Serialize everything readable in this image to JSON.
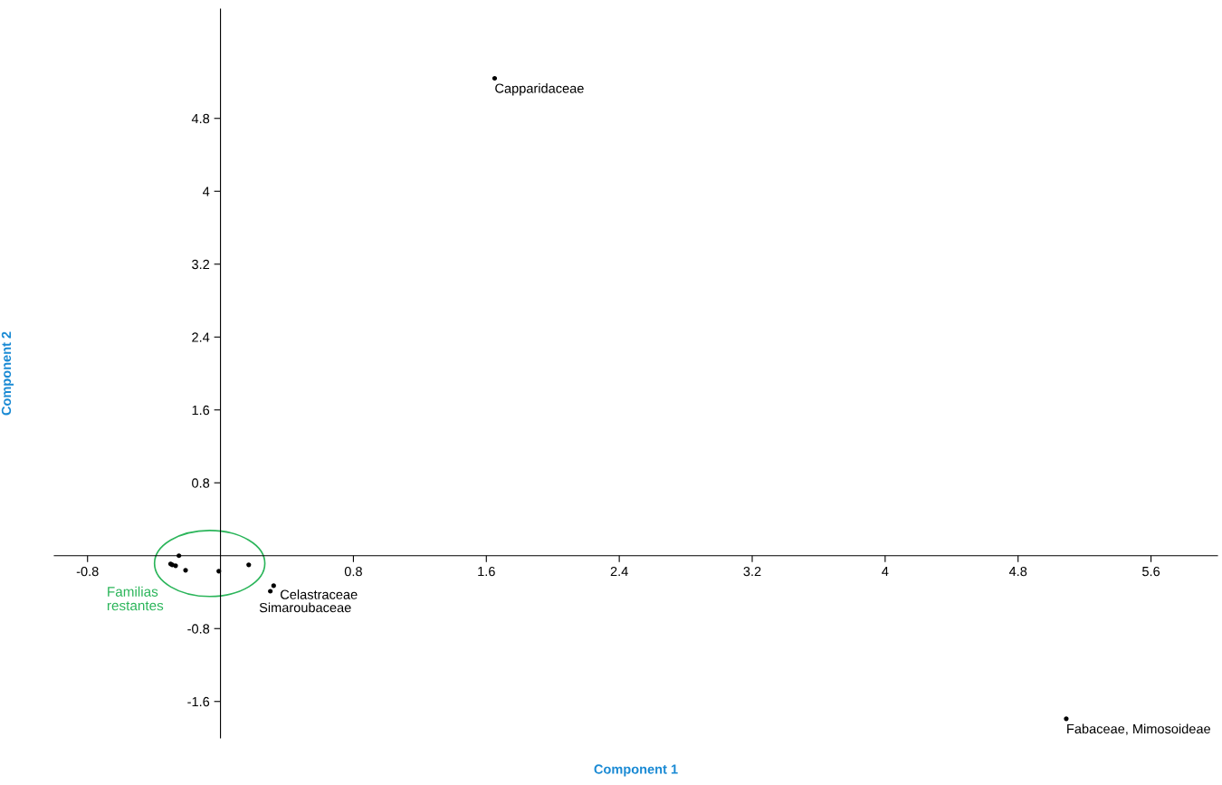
{
  "chart_data": {
    "type": "scatter",
    "xlabel": "Component 1",
    "ylabel": "Component 2",
    "x": [
      -0.25,
      -0.3,
      -0.29,
      -0.27,
      -0.21,
      -0.01,
      0.17,
      0.32,
      0.3,
      1.65,
      5.09
    ],
    "series": [
      {
        "color": "#000000",
        "values": [
          0.0,
          -0.09,
          -0.1,
          -0.11,
          -0.16,
          -0.17,
          -0.1,
          -0.33,
          -0.39,
          5.24,
          -1.79
        ]
      }
    ],
    "marker": "circle",
    "xlim": [
      -1.0,
      6.0
    ],
    "ylim": [
      -2.0,
      6.0
    ],
    "xticks": [
      -0.8,
      0.8,
      1.6,
      2.4,
      3.2,
      4,
      4.8,
      5.6
    ],
    "yticks": [
      -1.6,
      -0.8,
      0.8,
      1.6,
      2.4,
      3.2,
      4,
      4.8
    ],
    "grid": false,
    "annotations": [
      {
        "text": "Celastraceae",
        "x": 0.32,
        "y": -0.33
      },
      {
        "text": "Simaroubaceae",
        "x": 0.3,
        "y": -0.39
      },
      {
        "text": "Capparidaceae",
        "x": 1.65,
        "y": 5.24
      },
      {
        "text": "Fabaceae, Mimosoideae",
        "x": 5.09,
        "y": -1.79
      },
      "Familias\nrestantes"
    ]
  }
}
